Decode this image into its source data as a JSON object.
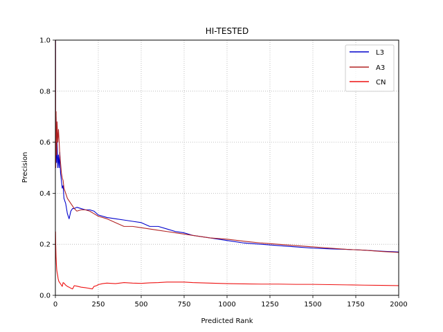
{
  "chart_data": {
    "type": "line",
    "title": "HI-TESTED",
    "xlabel": "Predicted Rank",
    "ylabel": "Precision",
    "xlim": [
      0,
      2000
    ],
    "ylim": [
      0.0,
      1.0
    ],
    "xticks": [
      0,
      250,
      500,
      750,
      1000,
      1250,
      1500,
      1750,
      2000
    ],
    "yticks": [
      0.0,
      0.2,
      0.4,
      0.6,
      0.8,
      1.0
    ],
    "xtick_labels": [
      "0",
      "250",
      "500",
      "750",
      "1000",
      "1250",
      "1500",
      "1750",
      "2000"
    ],
    "ytick_labels": [
      "0.0",
      "0.2",
      "0.4",
      "0.6",
      "0.8",
      "1.0"
    ],
    "grid": true,
    "legend_position": "top-right",
    "series": [
      {
        "name": "L3",
        "color": "#0000cc",
        "x": [
          1,
          2,
          4,
          7,
          10,
          14,
          18,
          22,
          26,
          30,
          35,
          40,
          45,
          50,
          60,
          70,
          80,
          90,
          100,
          110,
          125,
          150,
          175,
          200,
          225,
          250,
          300,
          350,
          400,
          450,
          500,
          550,
          600,
          650,
          700,
          750,
          800,
          900,
          1000,
          1100,
          1200,
          1300,
          1400,
          1500,
          1600,
          1700,
          1800,
          1900,
          2000
        ],
        "y": [
          1.0,
          0.5,
          0.7,
          0.52,
          0.6,
          0.5,
          0.55,
          0.5,
          0.56,
          0.48,
          0.45,
          0.42,
          0.43,
          0.38,
          0.36,
          0.32,
          0.3,
          0.33,
          0.34,
          0.34,
          0.345,
          0.34,
          0.335,
          0.335,
          0.33,
          0.315,
          0.305,
          0.3,
          0.295,
          0.29,
          0.285,
          0.27,
          0.27,
          0.26,
          0.25,
          0.245,
          0.235,
          0.225,
          0.215,
          0.205,
          0.2,
          0.195,
          0.19,
          0.185,
          0.182,
          0.18,
          0.177,
          0.173,
          0.17
        ]
      },
      {
        "name": "A3",
        "color": "#b22222",
        "x": [
          1,
          2,
          4,
          7,
          10,
          14,
          18,
          22,
          26,
          30,
          35,
          40,
          45,
          50,
          60,
          70,
          80,
          90,
          100,
          110,
          125,
          150,
          175,
          200,
          225,
          250,
          300,
          350,
          400,
          450,
          500,
          550,
          600,
          650,
          700,
          750,
          800,
          900,
          1000,
          1100,
          1200,
          1300,
          1400,
          1500,
          1600,
          1700,
          1800,
          1900,
          2000
        ],
        "y": [
          1.0,
          0.5,
          0.72,
          0.55,
          0.68,
          0.6,
          0.65,
          0.6,
          0.55,
          0.52,
          0.48,
          0.46,
          0.45,
          0.42,
          0.4,
          0.38,
          0.37,
          0.36,
          0.35,
          0.34,
          0.33,
          0.335,
          0.335,
          0.33,
          0.32,
          0.31,
          0.3,
          0.285,
          0.27,
          0.27,
          0.265,
          0.26,
          0.255,
          0.25,
          0.245,
          0.24,
          0.235,
          0.225,
          0.22,
          0.212,
          0.205,
          0.2,
          0.195,
          0.19,
          0.185,
          0.18,
          0.177,
          0.172,
          0.168
        ]
      },
      {
        "name": "CN",
        "color": "#ee1111",
        "x": [
          1,
          2,
          4,
          6,
          8,
          10,
          13,
          16,
          20,
          25,
          30,
          35,
          40,
          45,
          50,
          60,
          70,
          80,
          90,
          100,
          110,
          125,
          150,
          175,
          200,
          215,
          225,
          240,
          250,
          275,
          300,
          350,
          400,
          450,
          500,
          550,
          600,
          650,
          700,
          750,
          800,
          900,
          1000,
          1100,
          1200,
          1300,
          1400,
          1500,
          1600,
          1700,
          1800,
          1900,
          2000
        ],
        "y": [
          0.25,
          0.2,
          0.15,
          0.12,
          0.1,
          0.09,
          0.08,
          0.065,
          0.055,
          0.05,
          0.045,
          0.04,
          0.035,
          0.05,
          0.048,
          0.04,
          0.035,
          0.032,
          0.028,
          0.025,
          0.038,
          0.036,
          0.032,
          0.03,
          0.027,
          0.025,
          0.035,
          0.038,
          0.042,
          0.046,
          0.048,
          0.046,
          0.05,
          0.048,
          0.047,
          0.049,
          0.05,
          0.052,
          0.052,
          0.052,
          0.05,
          0.048,
          0.046,
          0.045,
          0.044,
          0.044,
          0.043,
          0.043,
          0.042,
          0.041,
          0.04,
          0.039,
          0.038
        ]
      }
    ]
  }
}
